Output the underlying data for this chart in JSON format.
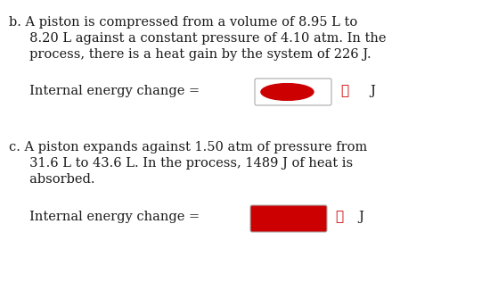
{
  "bg_color": "#ffffff",
  "text_color": "#1a1a1a",
  "red_color": "#cc0000",
  "box_outline_color": "#aaaaaa",
  "box_fill_color_b": "#cc0000",
  "box_fill_color_c": "#cc0000",
  "label_b": "b. A piston is compressed from a volume of 8.95 L to",
  "line_b2": "     8.20 L against a constant pressure of 4.10 atm. In the",
  "line_b3": "     process, there is a heat gain by the system of 226 J.",
  "label_internal_b": "     Internal energy change =",
  "label_x_b": "✕",
  "label_J_b": "J",
  "label_c": "c. A piston expands against 1.50 atm of pressure from",
  "line_c2": "     31.6 L to 43.6 L. In the process, 1489 J of heat is",
  "line_c3": "     absorbed.",
  "label_internal_c": "     Internal energy change =",
  "label_x_c": "✕",
  "label_J_c": "J",
  "font_size_body": 10.5,
  "font_size_x": 11,
  "figwidth": 5.5,
  "figheight": 3.16,
  "dpi": 100
}
